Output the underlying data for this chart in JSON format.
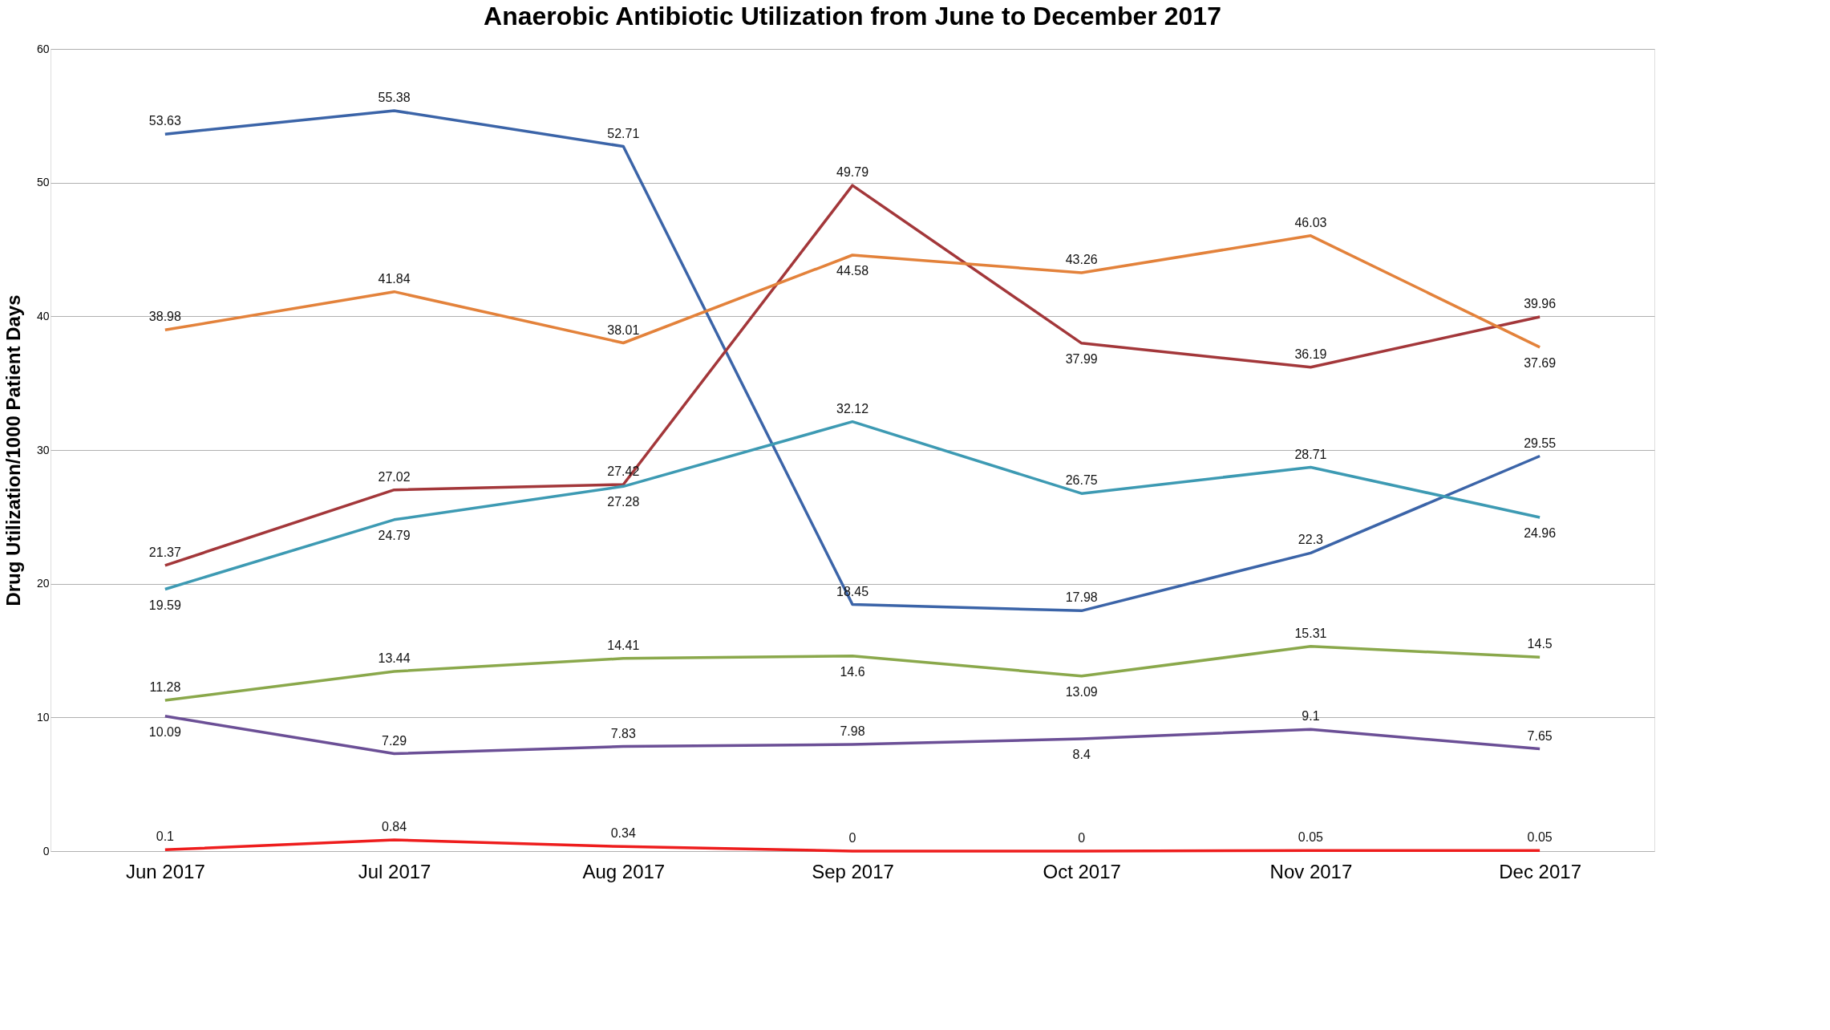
{
  "chart_data": {
    "type": "line",
    "title": "Anaerobic Antibiotic Utilization from June to December 2017",
    "ylabel": "Drug Utilization/1000 Patient Days",
    "categories": [
      "Jun 2017",
      "Jul 2017",
      "Aug 2017",
      "Sep 2017",
      "Oct 2017",
      "Nov 2017",
      "Dec 2017"
    ],
    "series": [
      {
        "color": "#3b64a8",
        "values": [
          53.63,
          55.38,
          52.71,
          18.45,
          17.98,
          22.3,
          29.55
        ]
      },
      {
        "color": "#a3373a",
        "values": [
          21.37,
          27.02,
          27.42,
          49.79,
          37.99,
          36.19,
          39.96
        ]
      },
      {
        "color": "#e3823b",
        "values": [
          38.98,
          41.84,
          38.01,
          44.58,
          43.26,
          46.03,
          37.69
        ]
      },
      {
        "color": "#3d9ab3",
        "values": [
          19.59,
          24.79,
          27.28,
          32.12,
          26.75,
          28.71,
          24.96
        ]
      },
      {
        "color": "#8aa84b",
        "values": [
          11.28,
          13.44,
          14.41,
          14.6,
          13.09,
          15.31,
          14.5
        ]
      },
      {
        "color": "#6b4f96",
        "values": [
          10.09,
          7.29,
          7.83,
          7.98,
          8.4,
          9.1,
          7.65
        ]
      },
      {
        "color": "#ee1d1d",
        "values": [
          0.1,
          0.84,
          0.34,
          0,
          0,
          0.05,
          0.05
        ]
      }
    ],
    "ylim": [
      0,
      60
    ],
    "yticks": [
      0,
      10,
      20,
      30,
      40,
      50,
      60
    ],
    "grid": "y",
    "data_labels": true,
    "legend": false,
    "marker": "none"
  }
}
